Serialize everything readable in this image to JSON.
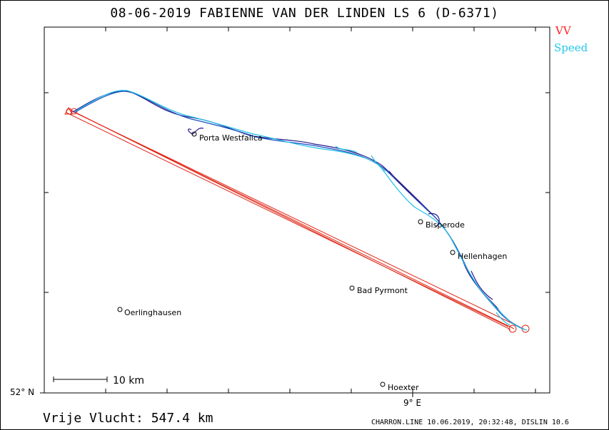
{
  "title": "08-06-2019    FABIENNE VAN DER LINDEN    LS 6 (D-6371)",
  "legend": {
    "vv_label": "VV",
    "vv_color": "#ff2020",
    "speed_label": "Speed",
    "speed_color": "#20c8e8"
  },
  "axes": {
    "lat_label": "52° N",
    "lon_label": "9° E"
  },
  "scale_bar": {
    "label": "10 km"
  },
  "towns": [
    {
      "id": "porta-westfalica",
      "name": "Porta Westfalica"
    },
    {
      "id": "bisperode",
      "name": "Bisperode"
    },
    {
      "id": "hellenhagen",
      "name": "Hellenhagen"
    },
    {
      "id": "bad-pyrmont",
      "name": "Bad Pyrmont"
    },
    {
      "id": "oerlinghausen",
      "name": "Oerlinghausen"
    },
    {
      "id": "hoexter",
      "name": "Hoexter"
    }
  ],
  "distance": "Vrije Vlucht:  547.4 km",
  "footer": "CHARRON.LINE 10.06.2019, 20:32:48, DISLIN 10.6",
  "track_colors": {
    "dark": "#2a1a8a",
    "mid": "#1a50c0",
    "light": "#20c0e8"
  }
}
